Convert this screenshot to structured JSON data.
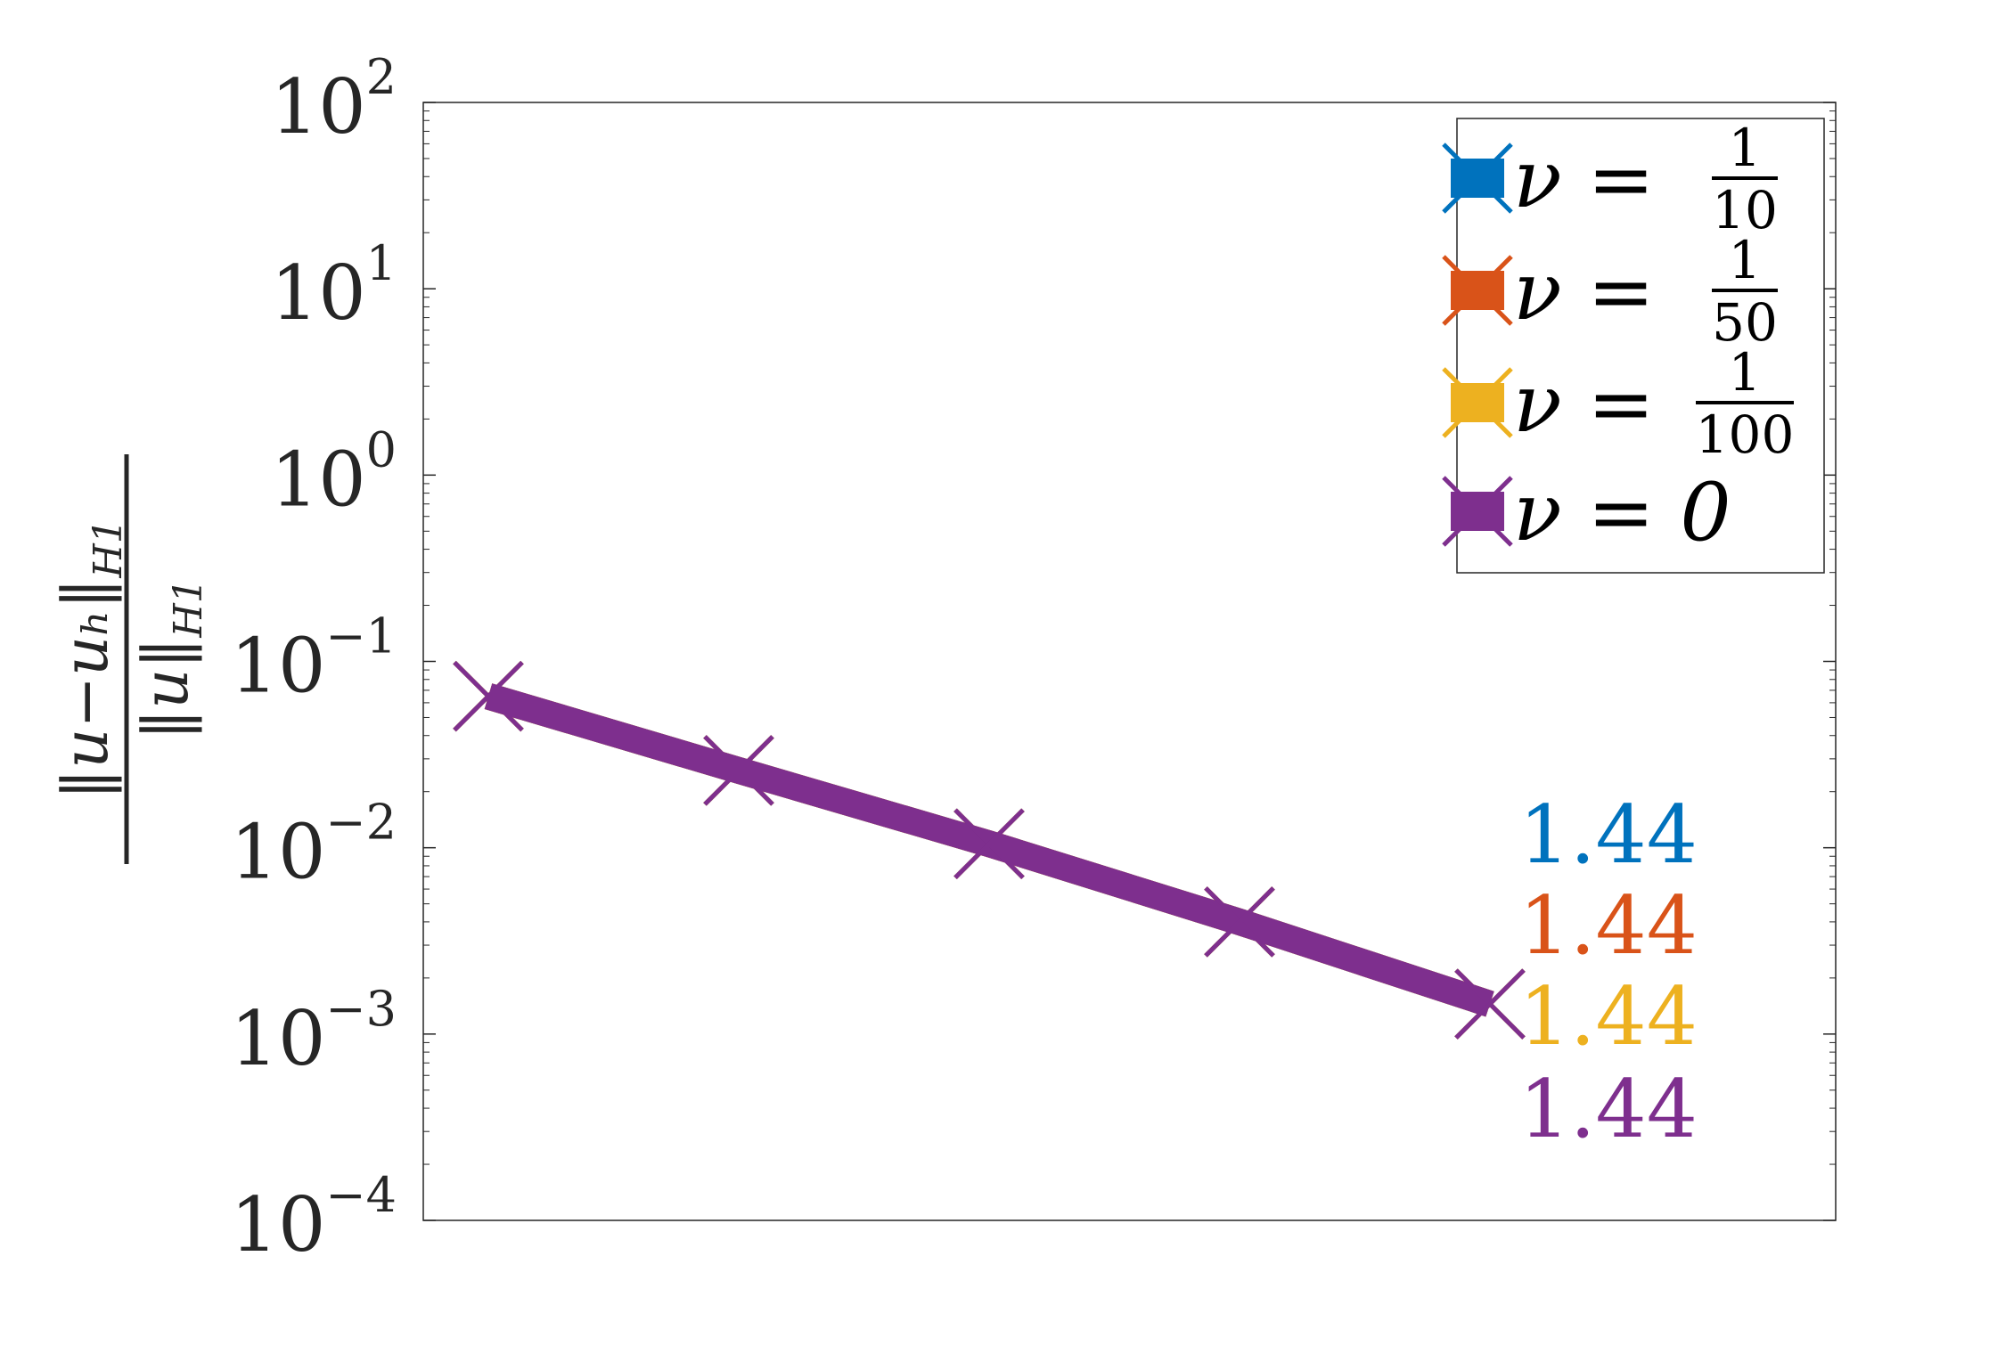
{
  "chart_data": {
    "type": "line",
    "yscale": "log",
    "ylim": [
      0.0001,
      100
    ],
    "y_ticks": [
      {
        "base": "10",
        "exp": "2"
      },
      {
        "base": "10",
        "exp": "1"
      },
      {
        "base": "10",
        "exp": "0"
      },
      {
        "base": "10",
        "exp": "−1"
      },
      {
        "base": "10",
        "exp": "−2"
      },
      {
        "base": "10",
        "exp": "−3"
      },
      {
        "base": "10",
        "exp": "−4"
      }
    ],
    "y_tick_values": [
      100,
      10,
      1,
      0.1,
      0.01,
      0.001,
      0.0001
    ],
    "ylabel": {
      "numerator": "‖u−uₕ‖",
      "numerator_sub": "H1",
      "denominator": "‖u‖",
      "denominator_sub": "H1"
    },
    "x_ticks_shown": false,
    "grid": false,
    "legend_position": "top-right",
    "marker": "x",
    "series": [
      {
        "color": "#0072BD",
        "legend": {
          "prefix": "ν =",
          "num": "1",
          "den": "10"
        },
        "y": [
          0.065,
          0.026,
          0.0105,
          0.004,
          0.00145
        ],
        "rate": "1.44"
      },
      {
        "color": "#D95319",
        "legend": {
          "prefix": "ν =",
          "num": "1",
          "den": "50"
        },
        "y": [
          0.065,
          0.026,
          0.0105,
          0.004,
          0.00145
        ],
        "rate": "1.44"
      },
      {
        "color": "#EDB120",
        "legend": {
          "prefix": "ν =",
          "num": "1",
          "den": "100"
        },
        "y": [
          0.065,
          0.026,
          0.0105,
          0.004,
          0.00145
        ],
        "rate": "1.44"
      },
      {
        "color": "#7E2F8E",
        "legend": {
          "prefix": "ν = 0",
          "num": "",
          "den": ""
        },
        "y": [
          0.065,
          0.026,
          0.0105,
          0.004,
          0.00145
        ],
        "rate": "1.44"
      }
    ]
  }
}
